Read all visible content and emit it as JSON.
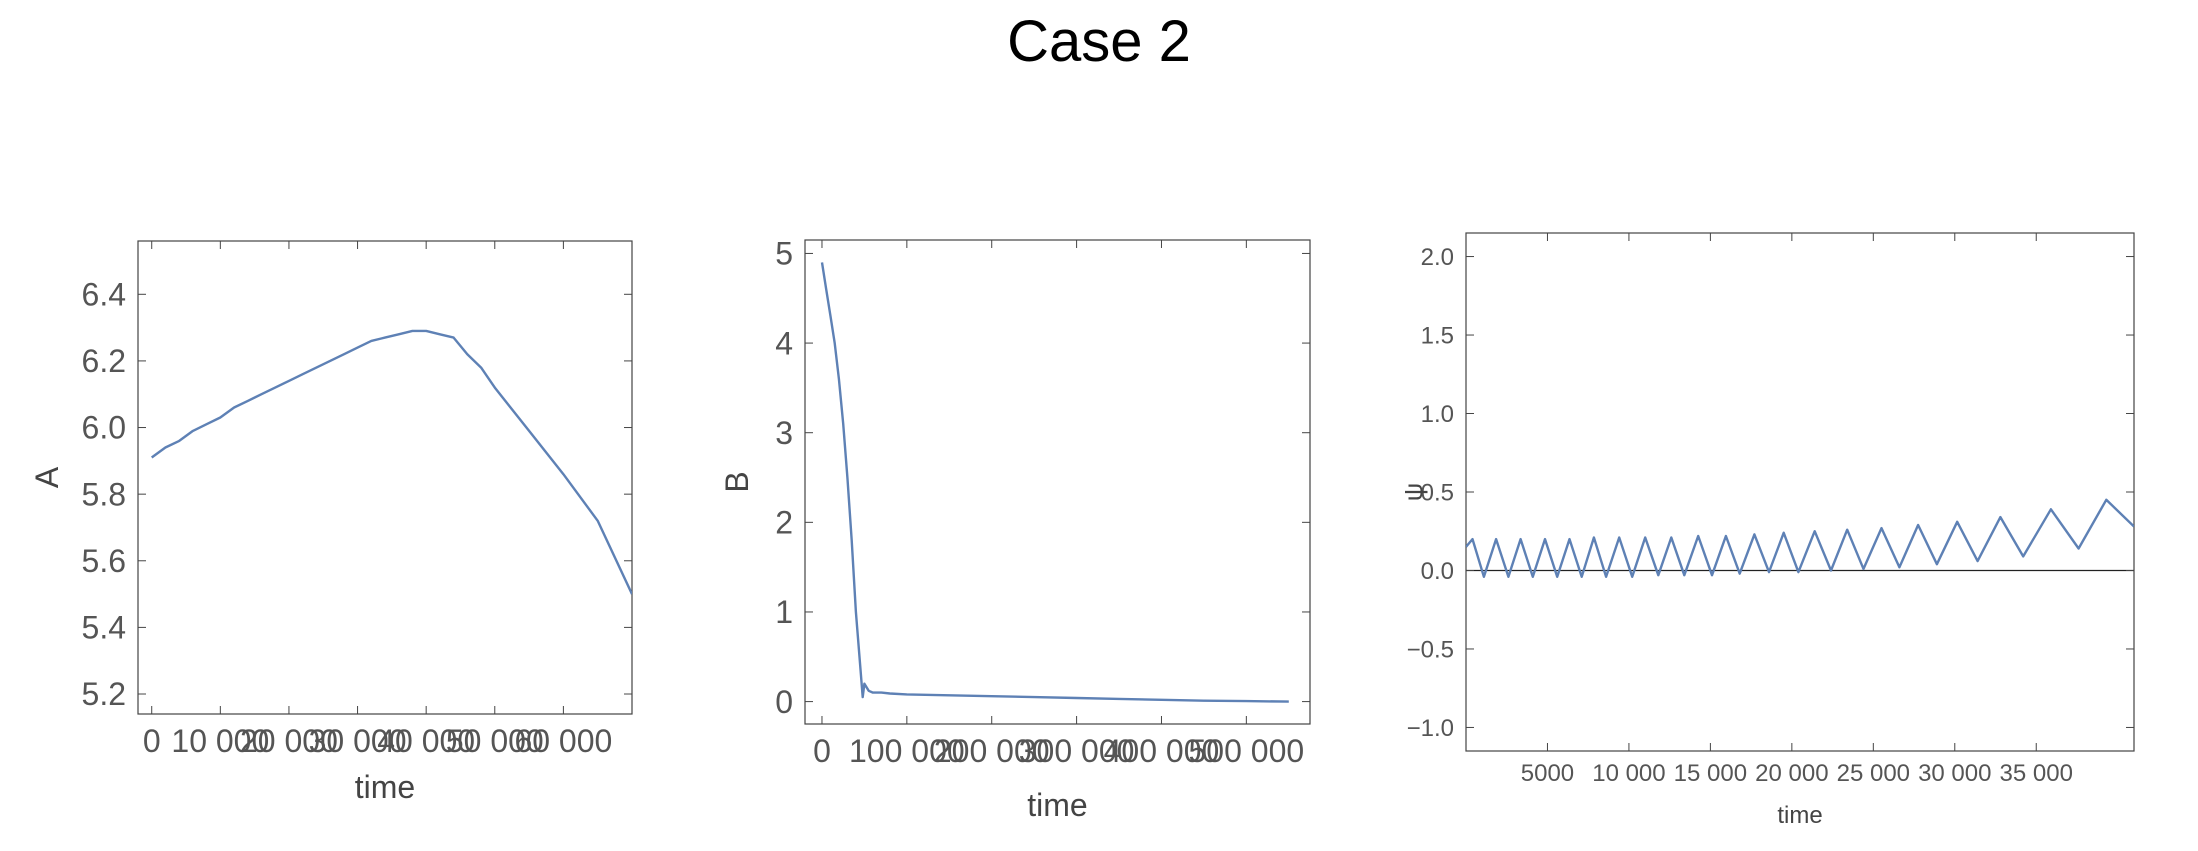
{
  "page": {
    "title": "Case 2"
  },
  "colors": {
    "series": "#5e81b5",
    "frame": "#444444",
    "tick_text": "#555555",
    "zero_line": "#222222"
  },
  "chart_data": [
    {
      "type": "line",
      "xlabel": "time",
      "ylabel": "A",
      "xlim": [
        -2000,
        70000
      ],
      "ylim": [
        5.14,
        6.56
      ],
      "xticks": [
        0,
        10000,
        20000,
        30000,
        40000,
        50000,
        60000
      ],
      "xtick_labels": [
        "0",
        "10 000",
        "20 000",
        "30 000",
        "40 000",
        "50 000",
        "60 000"
      ],
      "yticks": [
        5.2,
        5.4,
        5.6,
        5.8,
        6.0,
        6.2,
        6.4
      ],
      "ytick_labels": [
        "5.2",
        "5.4",
        "5.6",
        "5.8",
        "6.0",
        "6.2",
        "6.4"
      ],
      "series": [
        {
          "x": [
            0,
            2000,
            4000,
            6000,
            8000,
            10000,
            12000,
            14000,
            16000,
            18000,
            20000,
            22000,
            24000,
            26000,
            28000,
            30000,
            32000,
            34000,
            36000,
            38000,
            39000,
            40000,
            42000,
            44000,
            46000,
            48000,
            50000,
            55000,
            60000,
            65000,
            70000
          ],
          "y": [
            5.91,
            5.94,
            5.96,
            5.99,
            6.01,
            6.03,
            6.06,
            6.08,
            6.1,
            6.12,
            6.14,
            6.16,
            6.18,
            6.2,
            6.22,
            6.24,
            6.26,
            6.27,
            6.28,
            6.29,
            6.29,
            6.29,
            6.28,
            6.27,
            6.22,
            6.18,
            6.12,
            5.99,
            5.86,
            5.72,
            5.5
          ]
        }
      ]
    },
    {
      "type": "line",
      "xlabel": "time",
      "ylabel": "B",
      "xlim": [
        -20000,
        575000
      ],
      "ylim": [
        -0.25,
        5.15
      ],
      "xticks": [
        0,
        100000,
        200000,
        300000,
        400000,
        500000
      ],
      "xtick_labels": [
        "0",
        "100 000",
        "200 000",
        "300 000",
        "400 000",
        "500 000"
      ],
      "yticks": [
        0,
        1,
        2,
        3,
        4,
        5
      ],
      "ytick_labels": [
        "0",
        "1",
        "2",
        "3",
        "4",
        "5"
      ],
      "series": [
        {
          "x": [
            0,
            5000,
            10000,
            15000,
            20000,
            25000,
            30000,
            35000,
            40000,
            45000,
            48000,
            50000,
            55000,
            60000,
            70000,
            80000,
            100000,
            150000,
            200000,
            250000,
            300000,
            350000,
            400000,
            450000,
            500000,
            550000
          ],
          "y": [
            4.9,
            4.6,
            4.3,
            4.0,
            3.6,
            3.1,
            2.5,
            1.8,
            1.0,
            0.4,
            0.05,
            0.2,
            0.12,
            0.1,
            0.1,
            0.09,
            0.08,
            0.07,
            0.06,
            0.05,
            0.04,
            0.03,
            0.02,
            0.01,
            0.005,
            0.0
          ]
        }
      ]
    },
    {
      "type": "line",
      "xlabel": "time",
      "ylabel": "ψ",
      "xlim": [
        0,
        41000
      ],
      "ylim": [
        -1.15,
        2.15
      ],
      "xticks": [
        5000,
        10000,
        15000,
        20000,
        25000,
        30000,
        35000
      ],
      "xtick_labels": [
        "5000",
        "10 000",
        "15 000",
        "20 000",
        "25 000",
        "30 000",
        "35 000"
      ],
      "yticks": [
        -1.0,
        -0.5,
        0.0,
        0.5,
        1.0,
        1.5,
        2.0
      ],
      "ytick_labels": [
        "−1.0",
        "−0.5",
        "0.0",
        "0.5",
        "1.0",
        "1.5",
        "2.0"
      ],
      "zero_line": true,
      "series": [
        {
          "x": [
            0,
            400,
            1100,
            1850,
            2600,
            3350,
            4100,
            4850,
            5600,
            6350,
            7100,
            7850,
            8600,
            9400,
            10200,
            11000,
            11800,
            12600,
            13400,
            14250,
            15100,
            15950,
            16800,
            17700,
            18600,
            19500,
            20400,
            21400,
            22400,
            23400,
            24400,
            25500,
            26600,
            27750,
            28900,
            30150,
            31400,
            32800,
            34200,
            35900,
            37600,
            39300,
            41000
          ],
          "y": [
            0.15,
            0.2,
            -0.04,
            0.2,
            -0.04,
            0.2,
            -0.04,
            0.2,
            -0.04,
            0.2,
            -0.04,
            0.21,
            -0.04,
            0.21,
            -0.04,
            0.21,
            -0.03,
            0.21,
            -0.03,
            0.22,
            -0.03,
            0.22,
            -0.02,
            0.23,
            -0.01,
            0.24,
            -0.01,
            0.25,
            0.0,
            0.26,
            0.01,
            0.27,
            0.02,
            0.29,
            0.04,
            0.31,
            0.06,
            0.34,
            0.09,
            0.39,
            0.14,
            0.45,
            0.28
          ]
        }
      ]
    }
  ]
}
